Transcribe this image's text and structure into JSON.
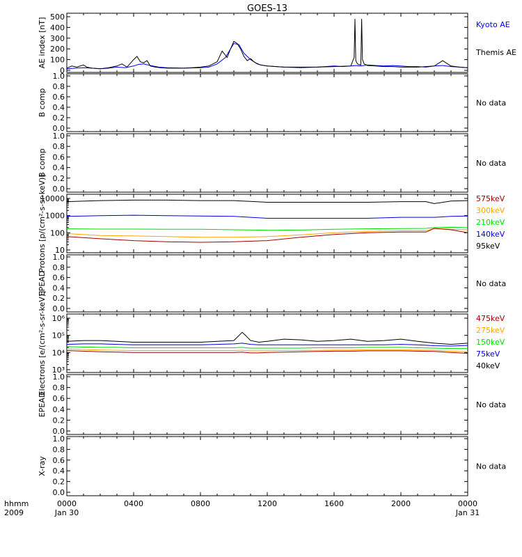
{
  "title": "GOES-13",
  "xaxis": {
    "corner_top": "hhmm",
    "corner_bottom": "2009",
    "ticks": [
      "0000",
      "0400",
      "0800",
      "1200",
      "1600",
      "2000",
      "0000"
    ],
    "start_date": "Jan 30",
    "end_date": "Jan 31"
  },
  "colors": {
    "kyoto": "#0000ff",
    "themis": "#000000",
    "red": "#a00000",
    "orange": "#ffa500",
    "green": "#00e000",
    "blue": "#0000dd",
    "black": "#000000"
  },
  "chart_data": [
    {
      "type": "line",
      "ylabel": "AE index [nT]",
      "ylim": [
        0,
        500
      ],
      "yticks": [
        "0",
        "100",
        "200",
        "300",
        "400",
        "500"
      ],
      "x_unit": "hours",
      "legend": [
        {
          "text": "Kyoto AE",
          "color": "#0000ff"
        },
        {
          "text": "Themis AE",
          "color": "#000000"
        }
      ],
      "series": [
        {
          "name": "Kyoto AE",
          "color": "#0000ff",
          "x": [
            0,
            0.5,
            1,
            1.5,
            2,
            2.5,
            3,
            3.5,
            4,
            4.3,
            4.6,
            5,
            5.5,
            6,
            7,
            8,
            8.5,
            9,
            9.5,
            9.8,
            10,
            10.3,
            10.6,
            11,
            11.3,
            11.6,
            12,
            13,
            14,
            15,
            16,
            16.5,
            17,
            17.3,
            17.6,
            18,
            18.5,
            19,
            19.5,
            20,
            20.5,
            21,
            21.5,
            22,
            22.5,
            23,
            23.5,
            24
          ],
          "y": [
            15,
            20,
            25,
            20,
            15,
            20,
            30,
            25,
            40,
            55,
            60,
            45,
            30,
            25,
            20,
            25,
            30,
            60,
            120,
            200,
            250,
            240,
            160,
            100,
            70,
            50,
            40,
            30,
            25,
            30,
            40,
            35,
            40,
            45,
            40,
            50,
            45,
            40,
            45,
            40,
            35,
            35,
            30,
            40,
            45,
            35,
            30,
            25
          ]
        },
        {
          "name": "Themis AE",
          "color": "#000000",
          "x": [
            0,
            0.3,
            0.6,
            1,
            1.2,
            1.5,
            2,
            2.5,
            3,
            3.3,
            3.6,
            4,
            4.2,
            4.4,
            4.6,
            4.8,
            5,
            5.3,
            5.6,
            6,
            7,
            7.5,
            8,
            8.5,
            9,
            9.3,
            9.6,
            9.8,
            10,
            10.2,
            10.4,
            10.6,
            10.8,
            11,
            11.2,
            11.4,
            11.6,
            12,
            13,
            14,
            15,
            16,
            17,
            17.2,
            17.25,
            17.3,
            17.4,
            17.6,
            17.65,
            17.7,
            17.8,
            18,
            18.5,
            19,
            19.5,
            20,
            20.5,
            21,
            21.5,
            22,
            22.5,
            22.8,
            23,
            23.5,
            24
          ],
          "y": [
            20,
            40,
            30,
            50,
            30,
            20,
            15,
            25,
            40,
            60,
            30,
            100,
            130,
            80,
            70,
            90,
            40,
            30,
            25,
            20,
            20,
            25,
            30,
            40,
            80,
            180,
            120,
            200,
            270,
            250,
            200,
            130,
            90,
            110,
            80,
            60,
            50,
            40,
            30,
            30,
            30,
            35,
            40,
            120,
            480,
            90,
            60,
            50,
            480,
            100,
            60,
            45,
            40,
            35,
            35,
            30,
            30,
            30,
            35,
            40,
            90,
            60,
            40,
            30,
            25
          ]
        }
      ]
    },
    {
      "type": "line",
      "ylabel": "B comp",
      "ylim": [
        0,
        1
      ],
      "yticks": [
        "0.0",
        "0.2",
        "0.4",
        "0.6",
        "0.8",
        "1.0"
      ],
      "note": "No data"
    },
    {
      "type": "line",
      "ylabel": "B comp",
      "ylim": [
        0,
        1
      ],
      "yticks": [
        "0.0",
        "0.2",
        "0.4",
        "0.6",
        "0.8",
        "1.0"
      ],
      "note": "No data"
    },
    {
      "type": "line",
      "ylabel": "Protons [p/(cm²-s-sr-keV)]",
      "yscale": "log",
      "ylim": [
        10,
        10000
      ],
      "yticks": [
        "10",
        "100",
        "1000",
        "10000"
      ],
      "legend": [
        {
          "text": "575keV",
          "color": "#a00000"
        },
        {
          "text": "300keV",
          "color": "#ffa500"
        },
        {
          "text": "210keV",
          "color": "#00e000"
        },
        {
          "text": "140keV",
          "color": "#0000dd"
        },
        {
          "text": "95keV",
          "color": "#000000"
        }
      ],
      "x": [
        0,
        2,
        4,
        6,
        8,
        10,
        12,
        14,
        16,
        18,
        20,
        21.5,
        22,
        23,
        24
      ],
      "series": [
        {
          "name": "95keV",
          "color": "#000000",
          "y": [
            6500,
            7500,
            8000,
            8000,
            7500,
            7500,
            6000,
            6000,
            6000,
            6000,
            6500,
            6500,
            5000,
            7000,
            7500
          ]
        },
        {
          "name": "140keV",
          "color": "#0000dd",
          "y": [
            900,
            1000,
            1050,
            1000,
            950,
            900,
            700,
            700,
            700,
            700,
            800,
            800,
            800,
            900,
            950
          ]
        },
        {
          "name": "210keV",
          "color": "#00e000",
          "y": [
            170,
            165,
            165,
            160,
            160,
            150,
            140,
            145,
            160,
            170,
            175,
            180,
            200,
            210,
            200
          ]
        },
        {
          "name": "300keV",
          "color": "#ffa500",
          "y": [
            90,
            70,
            65,
            60,
            55,
            55,
            60,
            75,
            100,
            120,
            130,
            130,
            180,
            160,
            150
          ]
        },
        {
          "name": "575keV",
          "color": "#a00000",
          "y": [
            60,
            45,
            35,
            30,
            28,
            30,
            35,
            55,
            80,
            100,
            110,
            110,
            180,
            150,
            100
          ]
        }
      ]
    },
    {
      "type": "line",
      "ylabel": "EPEAD",
      "ylim": [
        0,
        1
      ],
      "yticks": [
        "0.0",
        "0.2",
        "0.4",
        "0.6",
        "0.8",
        "1.0"
      ],
      "note": "No data"
    },
    {
      "type": "line",
      "ylabel": "Electrons [e/(cm²-s-sr-keV)]",
      "yscale": "log",
      "ylim": [
        1000,
        1000000
      ],
      "yticks": [
        "10³",
        "10⁴",
        "10⁵",
        "10⁶"
      ],
      "legend": [
        {
          "text": "475keV",
          "color": "#a00000"
        },
        {
          "text": "275keV",
          "color": "#ffa500"
        },
        {
          "text": "150keV",
          "color": "#00e000"
        },
        {
          "text": "75keV",
          "color": "#0000dd"
        },
        {
          "text": "40keV",
          "color": "#000000"
        }
      ],
      "x": [
        0,
        1,
        2,
        3,
        4,
        5,
        6,
        7,
        8,
        9,
        10,
        10.5,
        10.7,
        11,
        11.5,
        12,
        13,
        14,
        15,
        16,
        17,
        18,
        19,
        20,
        21,
        22,
        23,
        24
      ],
      "series": [
        {
          "name": "40keV",
          "color": "#000000",
          "y": [
            45000,
            50000,
            50000,
            45000,
            40000,
            40000,
            40000,
            40000,
            40000,
            45000,
            50000,
            150000,
            100000,
            50000,
            40000,
            45000,
            60000,
            55000,
            45000,
            50000,
            60000,
            45000,
            50000,
            60000,
            45000,
            35000,
            30000,
            35000
          ]
        },
        {
          "name": "75keV",
          "color": "#0000dd",
          "y": [
            30000,
            32000,
            32000,
            30000,
            28000,
            28000,
            28000,
            28000,
            28000,
            30000,
            32000,
            35000,
            33000,
            30000,
            28000,
            28000,
            28000,
            28000,
            28000,
            28000,
            28000,
            28000,
            28000,
            30000,
            28000,
            25000,
            24000,
            26000
          ]
        },
        {
          "name": "150keV",
          "color": "#00e000",
          "y": [
            22000,
            21000,
            20000,
            20000,
            19000,
            19000,
            19000,
            19000,
            19000,
            19000,
            19000,
            20000,
            19000,
            18000,
            18000,
            18000,
            18000,
            18000,
            19000,
            19000,
            19000,
            20000,
            20000,
            20000,
            19000,
            18000,
            17000,
            17000
          ]
        },
        {
          "name": "275keV",
          "color": "#ffa500",
          "y": [
            16000,
            15000,
            14000,
            13500,
            13000,
            13000,
            13000,
            13000,
            13000,
            13000,
            13000,
            13500,
            13000,
            12500,
            12500,
            12500,
            13000,
            13000,
            13500,
            14000,
            14000,
            14500,
            14500,
            14500,
            14000,
            13500,
            12000,
            11000
          ]
        },
        {
          "name": "475keV",
          "color": "#a00000",
          "y": [
            13000,
            12000,
            11000,
            10500,
            10000,
            10000,
            10000,
            10000,
            10000,
            10000,
            10000,
            10500,
            10000,
            9500,
            9500,
            10000,
            10500,
            11000,
            11500,
            12000,
            12000,
            12500,
            12500,
            12500,
            12000,
            11500,
            10000,
            9000
          ]
        }
      ]
    },
    {
      "type": "line",
      "ylabel": "EPEAD",
      "ylim": [
        0,
        1
      ],
      "yticks": [
        "0.0",
        "0.2",
        "0.4",
        "0.6",
        "0.8",
        "1.0"
      ],
      "note": "No data"
    },
    {
      "type": "line",
      "ylabel": "X-ray",
      "ylim": [
        0,
        1
      ],
      "yticks": [
        "0.0",
        "0.2",
        "0.4",
        "0.6",
        "0.8",
        "1.0"
      ],
      "note": "No data"
    }
  ]
}
